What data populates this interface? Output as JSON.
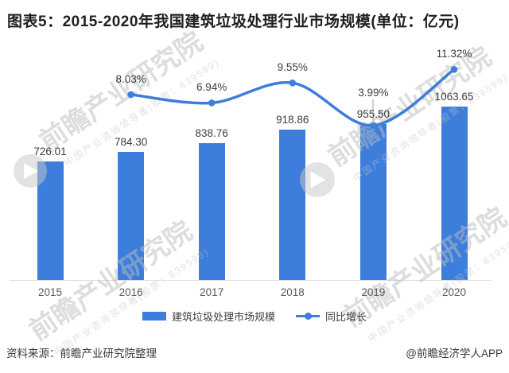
{
  "title": "图表5：2015-2020年我国建筑垃圾处理行业市场规模(单位：亿元)",
  "legend": {
    "bar_label": "建筑垃圾处理市场规模",
    "line_label": "同比增长"
  },
  "footer": {
    "source": "资料来源：前瞻产业研究院整理",
    "credit": "@前瞻经济学人APP"
  },
  "watermark": {
    "main": "前瞻产业研究院",
    "sub": "中国产业咨询领导者(股票：839599)"
  },
  "colors": {
    "primary_blue": "#3D7EDC",
    "axis_line": "#DCDCDC",
    "label_dark": "#3D3D3D",
    "axis_label": "#595959",
    "watermark_gray": "#BDBDBD",
    "leader_gray": "#9D9D9D"
  },
  "chart_data": {
    "type": "bar",
    "combo": "bar+line",
    "title": "2015-2020年我国建筑垃圾处理行业市场规模",
    "unit": "亿元",
    "categories": [
      "2015",
      "2016",
      "2017",
      "2018",
      "2019",
      "2020"
    ],
    "series": [
      {
        "name": "建筑垃圾处理市场规模",
        "type": "bar",
        "unit": "亿元",
        "values": [
          726.01,
          784.3,
          838.76,
          918.86,
          955.5,
          1063.65
        ]
      },
      {
        "name": "同比增长",
        "type": "line",
        "unit": "%",
        "values": [
          null,
          8.03,
          6.94,
          9.55,
          3.99,
          11.32
        ]
      }
    ],
    "value_labels": [
      "726.01",
      "784.30",
      "838.76",
      "918.86",
      "955.50",
      "1063.65"
    ],
    "pct_labels": [
      null,
      "8.03%",
      "6.94%",
      "9.55%",
      "3.99%",
      "11.32%"
    ],
    "xlabel": "",
    "ylabel": "",
    "y_axis_visible": false,
    "gridlines": false,
    "legend_position": "bottom",
    "data_labels_shown": true
  }
}
